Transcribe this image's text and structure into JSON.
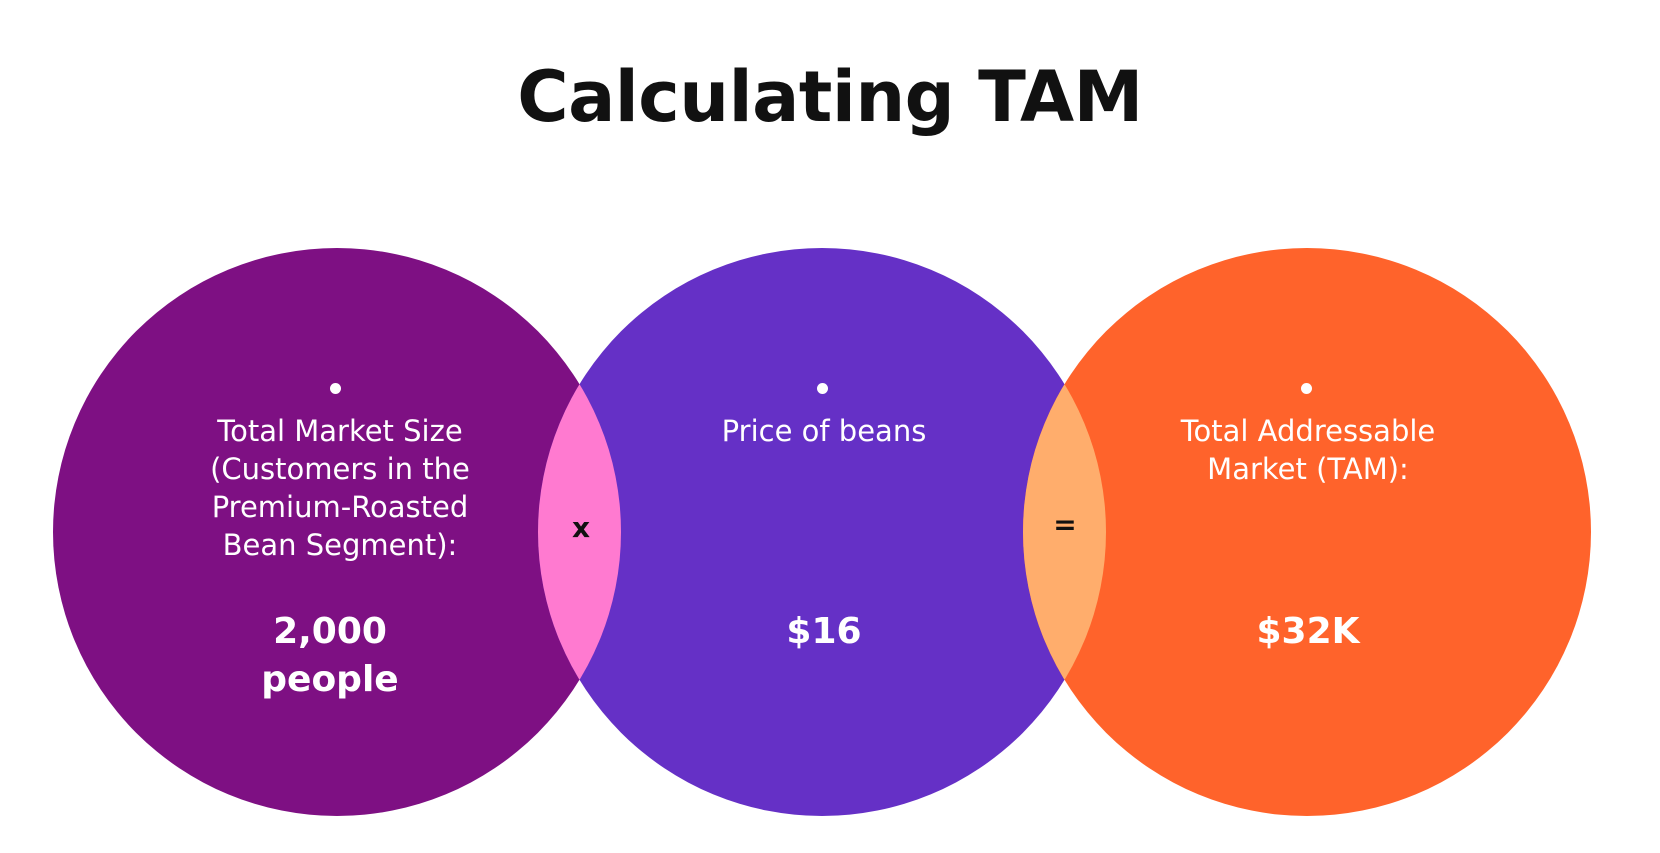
{
  "title": "Calculating TAM",
  "colors": {
    "circle_left": "#7E1083",
    "circle_middle": "#6530C6",
    "circle_right": "#FF632B",
    "overlap_left": "#FF7AD0",
    "overlap_right": "#FFAD6C",
    "text": "#FFFFFF",
    "title": "#111111"
  },
  "circles": [
    {
      "label": "Total Market Size (Customers in the Premium-Roasted Bean Segment):",
      "value_line1": "2,000",
      "value_line2": "people"
    },
    {
      "label": "Price of beans",
      "value_line1": "$16",
      "value_line2": ""
    },
    {
      "label": "Total Addressable Market (TAM):",
      "value_line1": "$32K",
      "value_line2": ""
    }
  ],
  "operators": {
    "multiply": "x",
    "equals": "="
  }
}
